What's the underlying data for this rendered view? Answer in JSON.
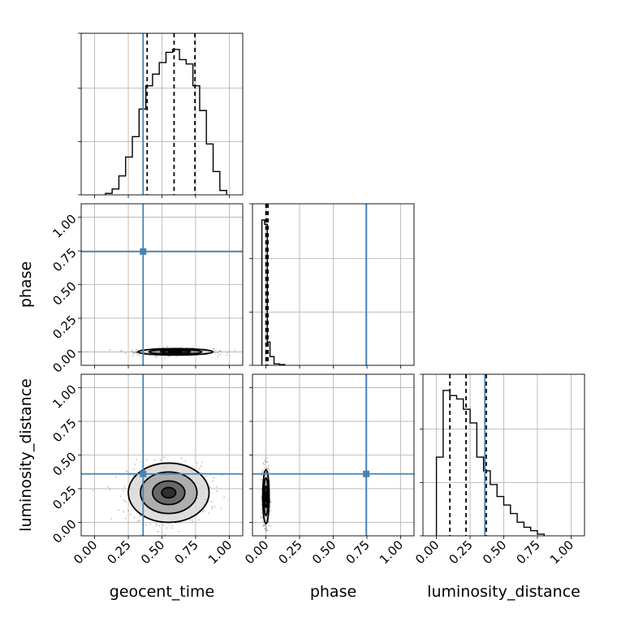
{
  "chart_data": {
    "type": "corner",
    "parameters": [
      "geocent_time",
      "phase",
      "luminosity_distance"
    ],
    "tick_labels": [
      "0.00",
      "0.25",
      "0.50",
      "0.75",
      "1.00"
    ],
    "axis_range": [
      -0.1,
      1.1
    ],
    "grid": true,
    "colors": {
      "truth": "#4682b4",
      "hist": "#000000",
      "quantile": "#000000",
      "grid": "#b0b0b0",
      "points": "#6a6a6a"
    },
    "truths": {
      "geocent_time": 0.36,
      "phase": 0.745,
      "luminosity_distance": 0.36
    },
    "quantiles": {
      "geocent_time": [
        0.39,
        0.59,
        0.745
      ],
      "phase": [
        0.0,
        0.005,
        0.015
      ],
      "luminosity_distance": [
        0.1,
        0.22,
        0.37
      ]
    },
    "histograms": {
      "geocent_time": {
        "bin_edges": [
          0.08,
          0.13,
          0.18,
          0.23,
          0.28,
          0.33,
          0.38,
          0.43,
          0.48,
          0.53,
          0.58,
          0.63,
          0.68,
          0.73,
          0.78,
          0.83,
          0.88,
          0.93,
          0.98
        ],
        "counts": [
          0.01,
          0.04,
          0.13,
          0.26,
          0.4,
          0.59,
          0.75,
          0.83,
          0.91,
          0.98,
          1.0,
          0.93,
          0.9,
          0.75,
          0.58,
          0.35,
          0.16,
          0.03
        ]
      },
      "phase": {
        "bin_edges": [
          -0.03,
          -0.01,
          0.01,
          0.03,
          0.06,
          0.1,
          0.14
        ],
        "counts": [
          1.0,
          0.97,
          0.16,
          0.06,
          0.01,
          0.005
        ]
      },
      "luminosity_distance": {
        "bin_edges": [
          0.0,
          0.05,
          0.1,
          0.15,
          0.2,
          0.25,
          0.3,
          0.35,
          0.4,
          0.45,
          0.5,
          0.55,
          0.6,
          0.65,
          0.7,
          0.75,
          0.8
        ],
        "counts": [
          0.46,
          0.85,
          0.82,
          0.8,
          0.74,
          0.66,
          0.46,
          0.38,
          0.3,
          0.23,
          0.18,
          0.13,
          0.08,
          0.05,
          0.03,
          0.01
        ]
      }
    },
    "pairs": [
      {
        "x": "geocent_time",
        "y": "phase",
        "x_center": 0.6,
        "y_center": 0.0,
        "x_spread": 0.14,
        "y_spread": 0.012
      },
      {
        "x": "geocent_time",
        "y": "luminosity_distance",
        "x_center": 0.55,
        "y_center": 0.22,
        "x_spread": 0.15,
        "y_spread": 0.11
      },
      {
        "x": "phase",
        "y": "luminosity_distance",
        "x_center": 0.0,
        "y_center": 0.19,
        "x_spread": 0.012,
        "y_spread": 0.1
      }
    ]
  }
}
